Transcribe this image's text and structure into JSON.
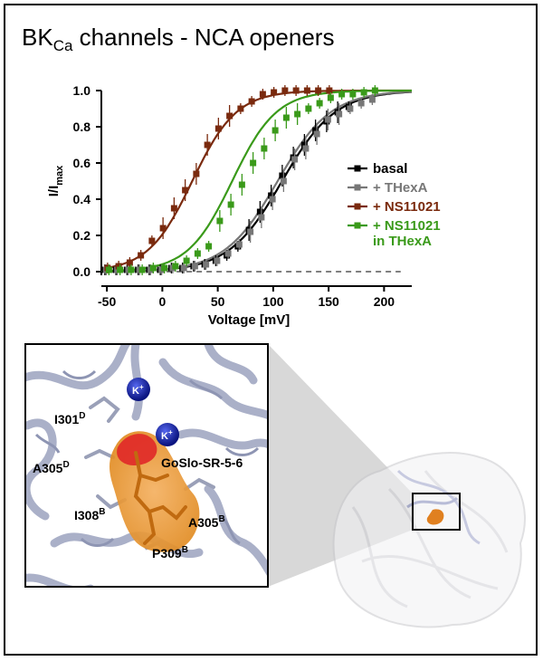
{
  "title": {
    "main": "BK",
    "sub": "Ca",
    "rest": " channels - NCA openers"
  },
  "chart_data": {
    "type": "line",
    "xlabel": "Voltage [mV]",
    "ylabel": {
      "main": "I/I",
      "sub": "max"
    },
    "xlim": [
      -55,
      225
    ],
    "ylim": [
      -0.02,
      1.04
    ],
    "xticks": [
      -50,
      0,
      50,
      100,
      150,
      200
    ],
    "yticks": [
      0.0,
      0.2,
      0.4,
      0.6,
      0.8,
      1.0
    ],
    "ytick_labels": [
      "0.0",
      "0.2",
      "0.4",
      "0.6",
      "0.8",
      "1.0"
    ],
    "grid": false,
    "legend": "right",
    "series": [
      {
        "name": "basal",
        "color": "#000000",
        "v50": 108,
        "k": 24,
        "x": [
          -50,
          -40,
          -30,
          -20,
          -10,
          0,
          10,
          20,
          30,
          40,
          50,
          60,
          70,
          80,
          90,
          100,
          110,
          120,
          130,
          140,
          150,
          160,
          170
        ],
        "y": [
          0.01,
          0.01,
          0.01,
          0.01,
          0.01,
          0.01,
          0.02,
          0.02,
          0.03,
          0.04,
          0.06,
          0.09,
          0.14,
          0.23,
          0.33,
          0.42,
          0.53,
          0.63,
          0.7,
          0.78,
          0.83,
          0.88,
          0.91
        ]
      },
      {
        "name": "+ THexA",
        "color": "#777777",
        "v50": 104,
        "k": 24,
        "x": [
          -50,
          -40,
          -30,
          -20,
          -10,
          0,
          10,
          20,
          30,
          40,
          50,
          60,
          70,
          80,
          90,
          100,
          110,
          120,
          130,
          140,
          150,
          160,
          170,
          180,
          190
        ],
        "y": [
          0.01,
          0.01,
          0.01,
          0.01,
          0.01,
          0.01,
          0.02,
          0.02,
          0.03,
          0.04,
          0.06,
          0.1,
          0.15,
          0.22,
          0.3,
          0.4,
          0.5,
          0.62,
          0.68,
          0.76,
          0.84,
          0.87,
          0.9,
          0.93,
          0.95
        ]
      },
      {
        "name": "+ NS11021",
        "color": "#7a2a0e",
        "v50": 27,
        "k": 20,
        "x": [
          -50,
          -40,
          -30,
          -20,
          -10,
          0,
          10,
          20,
          30,
          40,
          50,
          60,
          70,
          80,
          90,
          100,
          110,
          120,
          130,
          140,
          150
        ],
        "y": [
          0.02,
          0.03,
          0.05,
          0.09,
          0.17,
          0.24,
          0.35,
          0.45,
          0.54,
          0.7,
          0.79,
          0.86,
          0.9,
          0.94,
          0.98,
          0.99,
          1.0,
          1.0,
          1.0,
          1.0,
          1.0
        ]
      },
      {
        "name": "+ NS11021\nin THexA",
        "label_lines": [
          "+ NS11021",
          "in THexA"
        ],
        "color": "#3a9a1a",
        "v50": 63,
        "k": 20,
        "x": [
          -50,
          -40,
          -30,
          -20,
          -10,
          0,
          10,
          20,
          30,
          40,
          50,
          60,
          70,
          80,
          90,
          100,
          110,
          120,
          130,
          140,
          150,
          160,
          170,
          180,
          190
        ],
        "y": [
          0.01,
          0.01,
          0.01,
          0.01,
          0.02,
          0.02,
          0.03,
          0.06,
          0.1,
          0.14,
          0.28,
          0.37,
          0.48,
          0.6,
          0.68,
          0.78,
          0.85,
          0.87,
          0.9,
          0.93,
          0.96,
          0.98,
          0.98,
          0.99,
          1.0
        ]
      }
    ]
  },
  "structure_labels": {
    "ion_top": "K",
    "ion_top_sup": "+",
    "ion_mid": "K",
    "ion_mid_sup": "+",
    "i301": "I301",
    "i301_sup": "D",
    "a305d": "A305",
    "a305d_sup": "D",
    "ligand": "GoSlo-SR-5-6",
    "i308": "I308",
    "i308_sup": "B",
    "a305b": "A305",
    "a305b_sup": "B",
    "p309": "P309",
    "p309_sup": "B"
  },
  "colors": {
    "ribbon": "#aab0c8",
    "pocket": "#f0a040",
    "ligand_head": "#e02020",
    "ion": "#1a2aa8",
    "zoom_wedge": "#d0d0d0"
  }
}
